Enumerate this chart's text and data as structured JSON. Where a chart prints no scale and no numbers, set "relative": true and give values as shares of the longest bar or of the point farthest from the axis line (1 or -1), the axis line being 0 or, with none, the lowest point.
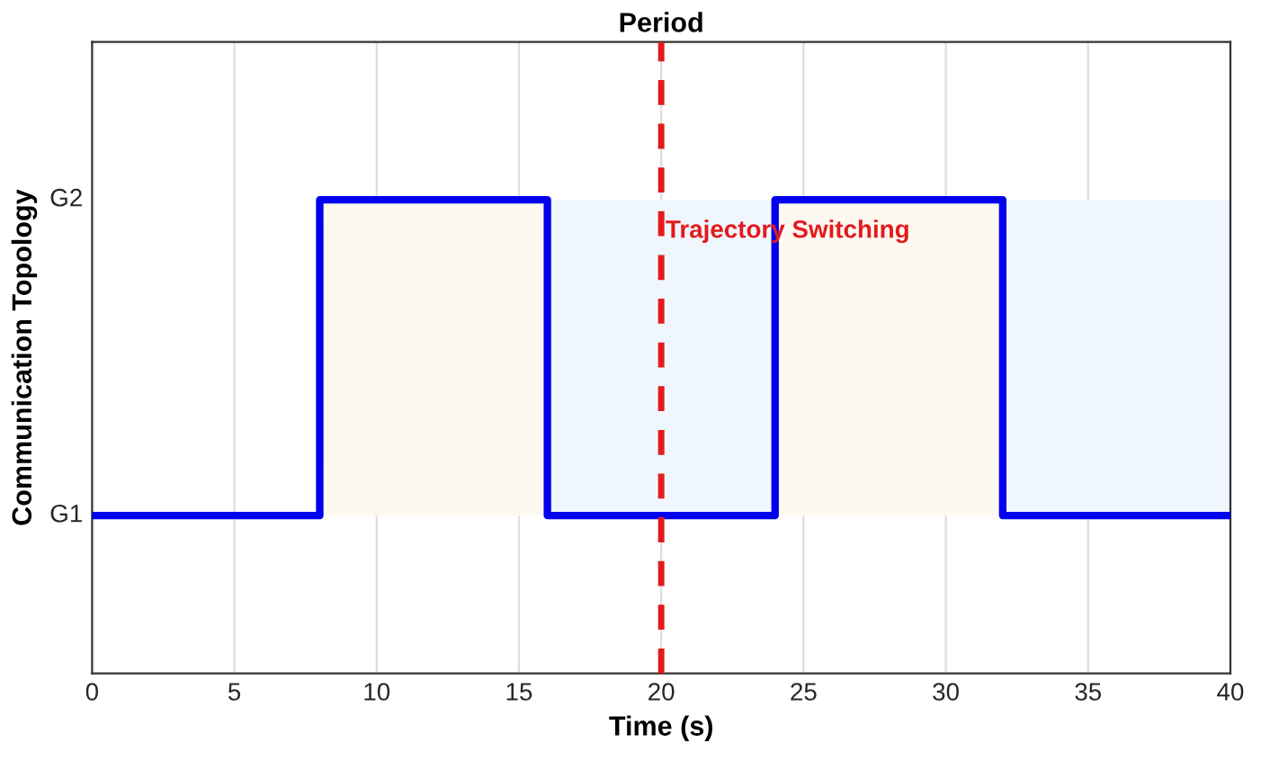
{
  "chart_data": {
    "type": "step",
    "title": "Period",
    "xlabel": "Time (s)",
    "ylabel": "Communication Topology",
    "x": [
      0,
      8,
      16,
      24,
      32,
      40
    ],
    "series": [
      {
        "color": "#0000ee",
        "values": [
          0,
          1,
          0,
          1,
          0,
          0
        ]
      }
    ],
    "relative": true,
    "annotations": [
      "G1",
      "G2"
    ],
    "xlim": [
      0,
      40
    ],
    "xticks": [
      0,
      5,
      10,
      15,
      20,
      25,
      30,
      35,
      40
    ],
    "ref_lines": [
      {
        "axis": "x",
        "value": 20,
        "label": "Trajectory Switching",
        "color": "#e41a1c",
        "line_style": "dashed"
      }
    ],
    "bands": [
      {
        "axis": "x",
        "from": 8,
        "to": 16,
        "color": "#fdf8f0"
      },
      {
        "axis": "x",
        "from": 16,
        "to": 24,
        "color": "#f0f6fd"
      },
      {
        "axis": "x",
        "from": 24,
        "to": 32,
        "color": "#fdf8f0"
      },
      {
        "axis": "x",
        "from": 32,
        "to": 40,
        "color": "#f0f6fd"
      }
    ],
    "grid": true
  }
}
